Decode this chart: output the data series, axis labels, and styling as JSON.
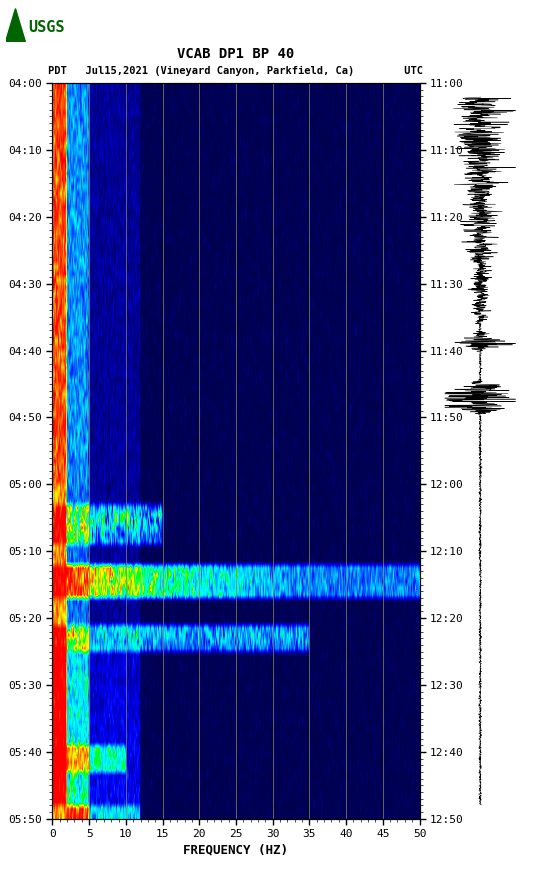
{
  "title_line1": "VCAB DP1 BP 40",
  "title_line2": "PDT   Jul15,2021 (Vineyard Canyon, Parkfield, Ca)        UTC",
  "xlabel": "FREQUENCY (HZ)",
  "freq_min": 0,
  "freq_max": 50,
  "freq_ticks": [
    0,
    5,
    10,
    15,
    20,
    25,
    30,
    35,
    40,
    45,
    50
  ],
  "left_time_labels": [
    "04:00",
    "04:10",
    "04:20",
    "04:30",
    "04:40",
    "04:50",
    "05:00",
    "05:10",
    "05:20",
    "05:30",
    "05:40",
    "05:50"
  ],
  "right_time_labels": [
    "11:00",
    "11:10",
    "11:20",
    "11:30",
    "11:40",
    "11:50",
    "12:00",
    "12:10",
    "12:20",
    "12:30",
    "12:40",
    "12:50"
  ],
  "vline_freqs": [
    5,
    10,
    15,
    20,
    25,
    30,
    35,
    40,
    45
  ],
  "vline_color": "#8B8B5A",
  "n_time": 110,
  "n_freq": 500,
  "noise_seed": 42
}
